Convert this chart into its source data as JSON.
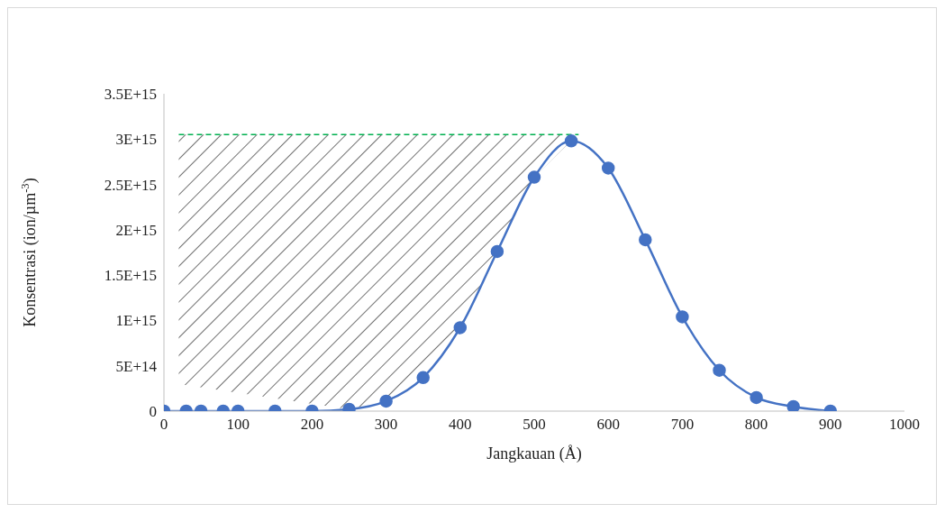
{
  "chart_data": {
    "type": "line",
    "xlabel": "Jangkauan (Å)",
    "ylabel": "Konsentrasi (ion/µm$^{-3}$)",
    "x": [
      0,
      30,
      50,
      80,
      100,
      150,
      200,
      250,
      300,
      350,
      400,
      450,
      500,
      550,
      600,
      650,
      700,
      750,
      800,
      850,
      900
    ],
    "series": [
      {
        "color": "#4472c4",
        "values": [
          0,
          0,
          0,
          0,
          0,
          0,
          0,
          20000000000000.0,
          110000000000000.0,
          370000000000000.0,
          920000000000000.0,
          1760000000000000.0,
          2580000000000000.0,
          2980000000000000.0,
          2680000000000000.0,
          1890000000000000.0,
          1040000000000000.0,
          450000000000000.0,
          150000000000000.0,
          50000000000000.0,
          0
        ]
      }
    ],
    "xlim": [
      0,
      1000
    ],
    "xticks": [
      0,
      100,
      200,
      300,
      400,
      500,
      600,
      700,
      800,
      900,
      1000
    ],
    "ylim": [
      0,
      3500000000000000.0
    ],
    "yticks": [
      {
        "value": 0,
        "label": "0"
      },
      {
        "value": 500000000000000.0,
        "label": "5E+14"
      },
      {
        "value": 1000000000000000.0,
        "label": "1E+15"
      },
      {
        "value": 1500000000000000.0,
        "label": "1.5E+15"
      },
      {
        "value": 2000000000000000.0,
        "label": "2E+15"
      },
      {
        "value": 2500000000000000.0,
        "label": "2.5E+15"
      },
      {
        "value": 3000000000000000.0,
        "label": "3E+15"
      },
      {
        "value": 3500000000000000.0,
        "label": "3.5E+15"
      }
    ],
    "ref_lines": [
      {
        "axis": "y",
        "value": 3050000000000000.0,
        "color": "#00b050",
        "line_style": "dashed"
      }
    ],
    "grid": false,
    "legend": false,
    "marker": "circle",
    "line_style": "solid"
  }
}
